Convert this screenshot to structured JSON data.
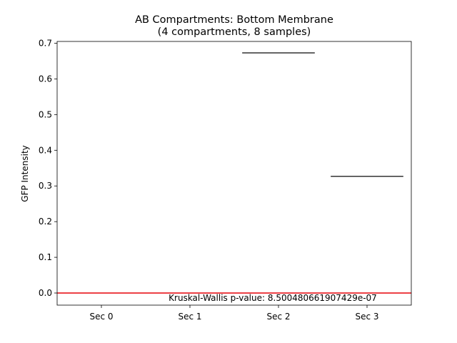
{
  "chart_data": {
    "type": "box",
    "title": "AB Compartments: Bottom Membrane",
    "subtitle": "(4 compartments, 8 samples)",
    "xlabel": "",
    "ylabel": "GFP Intensity",
    "categories": [
      "Sec 0",
      "Sec 1",
      "Sec 2",
      "Sec 3"
    ],
    "medians": [
      null,
      null,
      0.673,
      0.327
    ],
    "ylim": [
      -0.034,
      0.705
    ],
    "yticks": [
      0.0,
      0.1,
      0.2,
      0.3,
      0.4,
      0.5,
      0.6,
      0.7
    ],
    "ytick_labels": [
      "0.0",
      "0.1",
      "0.2",
      "0.3",
      "0.4",
      "0.5",
      "0.6",
      "0.7"
    ],
    "grid": false,
    "reference_line": {
      "y": 0.0,
      "color": "#e8161b"
    },
    "median_color": "#333333",
    "annotation": "Kruskal-Wallis p-value: 8.500480661907429e-07"
  }
}
